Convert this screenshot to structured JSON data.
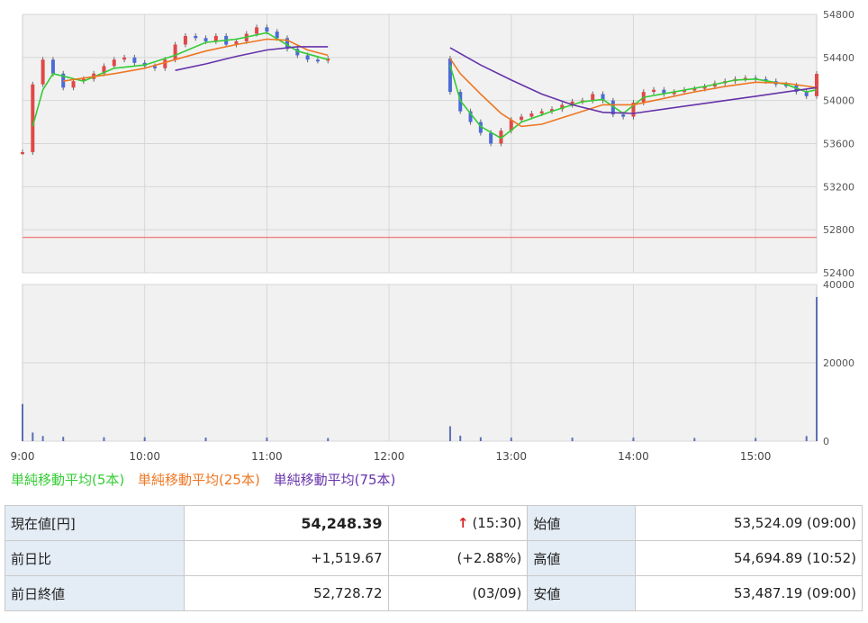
{
  "chart_data": [
    {
      "type": "candlestick",
      "title": "",
      "x_ticks": [
        "9:00",
        "10:00",
        "11:00",
        "12:00",
        "13:00",
        "14:00",
        "15:00"
      ],
      "y_ticks": [
        54800,
        54400,
        54000,
        53600,
        53200,
        52800,
        52400
      ],
      "ylim": [
        52400,
        54800
      ],
      "reference_line": 52728.72,
      "price_series": [
        {
          "name": "price",
          "points": [
            [
              "9:00",
              53520
            ],
            [
              "9:05",
              54150
            ],
            [
              "9:10",
              54380
            ],
            [
              "9:15",
              54250
            ],
            [
              "9:20",
              54120
            ],
            [
              "9:25",
              54180
            ],
            [
              "9:30",
              54200
            ],
            [
              "9:35",
              54250
            ],
            [
              "9:40",
              54320
            ],
            [
              "9:45",
              54380
            ],
            [
              "9:50",
              54400
            ],
            [
              "9:55",
              54350
            ],
            [
              "10:00",
              54320
            ],
            [
              "10:05",
              54300
            ],
            [
              "10:10",
              54380
            ],
            [
              "10:15",
              54520
            ],
            [
              "10:20",
              54600
            ],
            [
              "10:25",
              54580
            ],
            [
              "10:30",
              54550
            ],
            [
              "10:35",
              54600
            ],
            [
              "10:40",
              54520
            ],
            [
              "10:45",
              54550
            ],
            [
              "10:50",
              54620
            ],
            [
              "10:55",
              54680
            ],
            [
              "11:00",
              54640
            ],
            [
              "11:05",
              54580
            ],
            [
              "11:10",
              54480
            ],
            [
              "11:15",
              54420
            ],
            [
              "11:20",
              54380
            ],
            [
              "11:25",
              54370
            ],
            [
              "11:30",
              54390
            ],
            [
              "12:30",
              54080
            ],
            [
              "12:35",
              53900
            ],
            [
              "12:40",
              53800
            ],
            [
              "12:45",
              53700
            ],
            [
              "12:50",
              53600
            ],
            [
              "12:55",
              53720
            ],
            [
              "13:00",
              53820
            ],
            [
              "13:05",
              53850
            ],
            [
              "13:10",
              53880
            ],
            [
              "13:15",
              53900
            ],
            [
              "13:20",
              53920
            ],
            [
              "13:25",
              53960
            ],
            [
              "13:30",
              53990
            ],
            [
              "13:35",
              54000
            ],
            [
              "13:40",
              54060
            ],
            [
              "13:45",
              54000
            ],
            [
              "13:50",
              53870
            ],
            [
              "13:55",
              53850
            ],
            [
              "14:00",
              53980
            ],
            [
              "14:05",
              54080
            ],
            [
              "14:10",
              54100
            ],
            [
              "14:15",
              54060
            ],
            [
              "14:20",
              54080
            ],
            [
              "14:25",
              54100
            ],
            [
              "14:30",
              54110
            ],
            [
              "14:35",
              54130
            ],
            [
              "14:40",
              54160
            ],
            [
              "14:45",
              54180
            ],
            [
              "14:50",
              54200
            ],
            [
              "14:55",
              54210
            ],
            [
              "15:00",
              54200
            ],
            [
              "15:05",
              54180
            ],
            [
              "15:10",
              54150
            ],
            [
              "15:15",
              54140
            ],
            [
              "15:20",
              54080
            ],
            [
              "15:25",
              54040
            ],
            [
              "15:30",
              54248
            ]
          ]
        },
        {
          "name": "単純移動平均(5本)",
          "color": "#33cc33",
          "points": [
            [
              "9:05",
              53760
            ],
            [
              "9:10",
              54100
            ],
            [
              "9:15",
              54250
            ],
            [
              "9:30",
              54180
            ],
            [
              "9:45",
              54300
            ],
            [
              "10:00",
              54330
            ],
            [
              "10:15",
              54420
            ],
            [
              "10:30",
              54540
            ],
            [
              "10:45",
              54570
            ],
            [
              "11:00",
              54630
            ],
            [
              "11:15",
              54460
            ],
            [
              "11:30",
              54380
            ],
            [
              "12:30",
              54330
            ],
            [
              "12:35",
              54000
            ],
            [
              "12:45",
              53760
            ],
            [
              "12:55",
              53650
            ],
            [
              "13:05",
              53800
            ],
            [
              "13:20",
              53900
            ],
            [
              "13:35",
              53990
            ],
            [
              "13:45",
              54010
            ],
            [
              "13:55",
              53880
            ],
            [
              "14:05",
              54030
            ],
            [
              "14:20",
              54080
            ],
            [
              "14:35",
              54130
            ],
            [
              "14:50",
              54190
            ],
            [
              "15:00",
              54200
            ],
            [
              "15:15",
              54150
            ],
            [
              "15:25",
              54080
            ],
            [
              "15:30",
              54100
            ]
          ]
        },
        {
          "name": "単純移動平均(25本)",
          "color": "#ee7722",
          "points": [
            [
              "9:20",
              54180
            ],
            [
              "9:45",
              54250
            ],
            [
              "10:00",
              54300
            ],
            [
              "10:15",
              54380
            ],
            [
              "10:30",
              54460
            ],
            [
              "10:45",
              54520
            ],
            [
              "11:00",
              54570
            ],
            [
              "11:10",
              54560
            ],
            [
              "11:20",
              54470
            ],
            [
              "11:30",
              54420
            ],
            [
              "12:30",
              54390
            ],
            [
              "12:35",
              54250
            ],
            [
              "12:45",
              54060
            ],
            [
              "12:55",
              53880
            ],
            [
              "13:05",
              53760
            ],
            [
              "13:15",
              53780
            ],
            [
              "13:30",
              53870
            ],
            [
              "13:45",
              53960
            ],
            [
              "14:00",
              53960
            ],
            [
              "14:15",
              54020
            ],
            [
              "14:30",
              54080
            ],
            [
              "14:45",
              54130
            ],
            [
              "15:00",
              54170
            ],
            [
              "15:15",
              54160
            ],
            [
              "15:30",
              54120
            ]
          ]
        },
        {
          "name": "単純移動平均(75本)",
          "color": "#6633aa",
          "points": [
            [
              "10:15",
              54280
            ],
            [
              "10:30",
              54340
            ],
            [
              "10:45",
              54410
            ],
            [
              "11:00",
              54470
            ],
            [
              "11:15",
              54500
            ],
            [
              "11:30",
              54500
            ],
            [
              "12:30",
              54490
            ],
            [
              "12:45",
              54330
            ],
            [
              "13:00",
              54190
            ],
            [
              "13:15",
              54060
            ],
            [
              "13:30",
              53960
            ],
            [
              "13:45",
              53890
            ],
            [
              "14:00",
              53880
            ],
            [
              "14:15",
              53920
            ],
            [
              "14:30",
              53960
            ],
            [
              "14:45",
              54000
            ],
            [
              "15:00",
              54040
            ],
            [
              "15:15",
              54080
            ],
            [
              "15:30",
              54120
            ]
          ]
        }
      ]
    },
    {
      "type": "bar",
      "title": "",
      "y_ticks": [
        40000,
        20000,
        0
      ],
      "ylim": [
        0,
        40000
      ],
      "volume_points": [
        [
          "9:00",
          9500
        ],
        [
          "9:05",
          2200
        ],
        [
          "9:10",
          1300
        ],
        [
          "9:20",
          1100
        ],
        [
          "9:40",
          1000
        ],
        [
          "10:00",
          1000
        ],
        [
          "10:30",
          900
        ],
        [
          "11:00",
          900
        ],
        [
          "11:30",
          800
        ],
        [
          "12:30",
          3800
        ],
        [
          "12:35",
          1400
        ],
        [
          "12:45",
          1000
        ],
        [
          "13:00",
          900
        ],
        [
          "13:30",
          900
        ],
        [
          "14:00",
          900
        ],
        [
          "14:30",
          800
        ],
        [
          "15:00",
          800
        ],
        [
          "15:25",
          1300
        ],
        [
          "15:30",
          36800
        ]
      ]
    }
  ],
  "legend": {
    "ma5": "単純移動平均(5本)",
    "ma25": "単純移動平均(25本)",
    "ma75": "単純移動平均(75本)",
    "ma5_color": "#33cc33",
    "ma25_color": "#ee7722",
    "ma75_color": "#6633aa"
  },
  "quote": {
    "current_label": "現在値[円]",
    "current_value": "54,248.39",
    "current_arrow": "↑",
    "current_time": "(15:30)",
    "open_label": "始値",
    "open_value": "53,524.09 (09:00)",
    "change_label": "前日比",
    "change_value": "+1,519.67",
    "change_pct": "(+2.88%)",
    "high_label": "高値",
    "high_value": "54,694.89 (10:52)",
    "prev_close_label": "前日終値",
    "prev_close_value": "52,728.72",
    "prev_close_date": "(03/09)",
    "low_label": "安値",
    "low_value": "53,487.19 (09:00)"
  }
}
